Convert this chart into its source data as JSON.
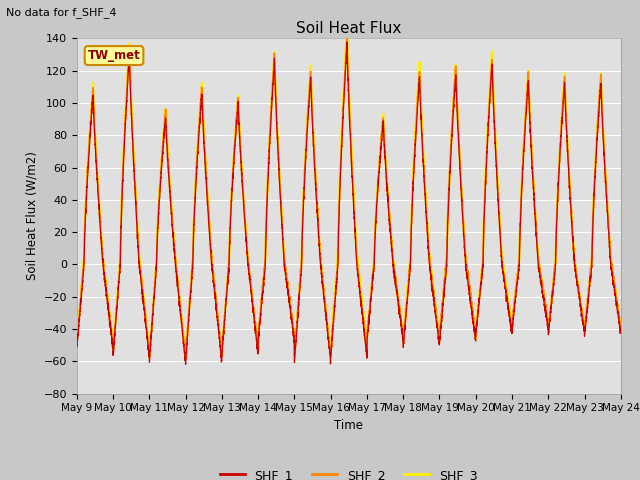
{
  "title": "Soil Heat Flux",
  "subtitle": "No data for f_SHF_4",
  "ylabel": "Soil Heat Flux (W/m2)",
  "xlabel": "Time",
  "ylim": [
    -80,
    140
  ],
  "yticks": [
    -80,
    -60,
    -40,
    -20,
    0,
    20,
    40,
    60,
    80,
    100,
    120,
    140
  ],
  "xtick_labels": [
    "May 9",
    "May 10",
    "May 11",
    "May 12",
    "May 13",
    "May 14",
    "May 15",
    "May 16",
    "May 17",
    "May 18",
    "May 19",
    "May 20",
    "May 21",
    "May 22",
    "May 23",
    "May 24"
  ],
  "line_colors": {
    "SHF_1": "#cc0000",
    "SHF_2": "#ff8800",
    "SHF_3": "#ffee00"
  },
  "legend_label": "TW_met",
  "legend_box_color": "#ffff99",
  "legend_border_color": "#cc8800",
  "fig_bg_color": "#c8c8c8",
  "plot_bg_color": "#e0e0e0",
  "grid_color": "#ffffff",
  "n_days": 15,
  "pts_per_day": 288,
  "day_amplitudes": [
    105,
    130,
    91,
    106,
    100,
    126,
    116,
    137,
    88,
    116,
    118,
    125,
    114,
    113,
    113
  ],
  "night_mins": [
    -52,
    -57,
    -60,
    -60,
    -55,
    -47,
    -60,
    -57,
    -47,
    -50,
    -48,
    -43,
    -40,
    -43,
    -43
  ]
}
